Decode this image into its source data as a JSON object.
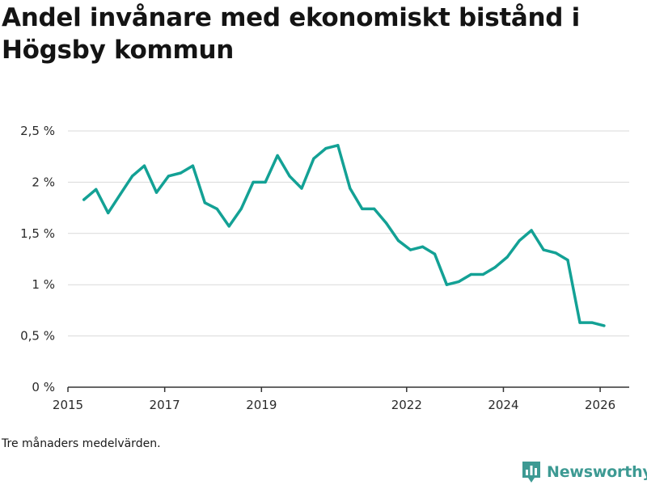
{
  "header": {
    "title": "Andel invånare med ekonomiskt bistånd i Högsby kommun"
  },
  "chart_data": {
    "type": "line",
    "title": "Andel invånare med ekonomiskt bistånd i Högsby kommun",
    "xlabel": "",
    "ylabel": "",
    "ylim": [
      0,
      2.5
    ],
    "xlim": [
      2015.0,
      2026.6
    ],
    "grid": true,
    "y_ticks": [
      {
        "value": 0,
        "label": "0 %"
      },
      {
        "value": 0.5,
        "label": "0,5 %"
      },
      {
        "value": 1,
        "label": "1 %"
      },
      {
        "value": 1.5,
        "label": "1,5 %"
      },
      {
        "value": 2,
        "label": "2 %"
      },
      {
        "value": 2.5,
        "label": "2,5 %"
      }
    ],
    "x_ticks": [
      {
        "value": 2015.0,
        "label": "2015"
      },
      {
        "value": 2017.0,
        "label": "2017"
      },
      {
        "value": 2019.0,
        "label": "2019"
      },
      {
        "value": 2022.0,
        "label": "2022"
      },
      {
        "value": 2024.0,
        "label": "2024"
      },
      {
        "value": 2026.0,
        "label": "2026"
      }
    ],
    "series": [
      {
        "name": "Andel invånare med ekonomiskt bistånd",
        "color": "#13a195",
        "x": [
          2015.33,
          2015.58,
          2015.83,
          2016.08,
          2016.33,
          2016.58,
          2016.83,
          2017.08,
          2017.33,
          2017.58,
          2017.83,
          2018.08,
          2018.33,
          2018.58,
          2018.83,
          2019.08,
          2019.33,
          2019.58,
          2019.83,
          2020.08,
          2020.33,
          2020.58,
          2020.83,
          2021.08,
          2021.33,
          2021.58,
          2021.83,
          2022.08,
          2022.33,
          2022.58,
          2022.83,
          2023.08,
          2023.33,
          2023.58,
          2023.83,
          2024.08,
          2024.33,
          2024.58,
          2024.83,
          2025.08,
          2025.33,
          2025.58,
          2025.83,
          2026.08
        ],
        "values": [
          1.83,
          1.93,
          1.7,
          1.88,
          2.06,
          2.16,
          1.9,
          2.06,
          2.09,
          2.16,
          1.8,
          1.74,
          1.57,
          1.74,
          2.0,
          2.0,
          2.26,
          2.06,
          1.94,
          2.23,
          2.33,
          2.36,
          1.94,
          1.74,
          1.74,
          1.6,
          1.43,
          1.34,
          1.37,
          1.3,
          1.0,
          1.03,
          1.1,
          1.1,
          1.17,
          1.27,
          1.43,
          1.53,
          1.34,
          1.31,
          1.24,
          0.63,
          0.63,
          0.6
        ]
      }
    ],
    "note": "Tre månaders medelvärden."
  },
  "footer": {
    "note": "Tre månaders medelvärden.",
    "brand": "Newsworthy",
    "brand_color": "#3d9a93",
    "brand_icon": "bar-chart-logo-icon"
  }
}
